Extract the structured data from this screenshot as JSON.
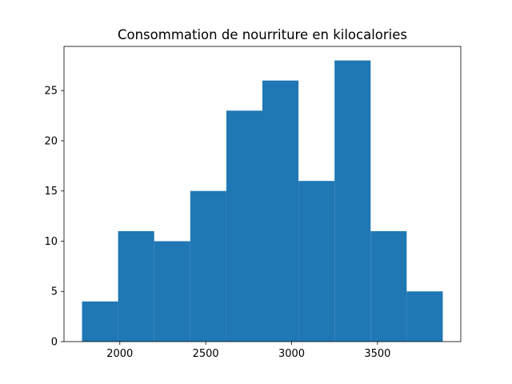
{
  "chart_data": {
    "type": "bar",
    "title": "Consommation de nourriture en kilocalories",
    "xlabel": "",
    "ylabel": "",
    "bins": [
      {
        "x0": 1780,
        "x1": 1990,
        "count": 4
      },
      {
        "x0": 1990,
        "x1": 2200,
        "count": 11
      },
      {
        "x0": 2200,
        "x1": 2410,
        "count": 10
      },
      {
        "x0": 2410,
        "x1": 2620,
        "count": 15
      },
      {
        "x0": 2620,
        "x1": 2830,
        "count": 23
      },
      {
        "x0": 2830,
        "x1": 3040,
        "count": 26
      },
      {
        "x0": 3040,
        "x1": 3250,
        "count": 16
      },
      {
        "x0": 3250,
        "x1": 3460,
        "count": 28
      },
      {
        "x0": 3460,
        "x1": 3670,
        "count": 11
      },
      {
        "x0": 3670,
        "x1": 3880,
        "count": 5
      }
    ],
    "xlim": [
      1675,
      3985
    ],
    "ylim": [
      0,
      29.4
    ],
    "xticks": [
      2000,
      2500,
      3000,
      3500
    ],
    "yticks": [
      0,
      5,
      10,
      15,
      20,
      25
    ],
    "bar_color": "#1f77b4",
    "grid": false,
    "legend": "none"
  }
}
